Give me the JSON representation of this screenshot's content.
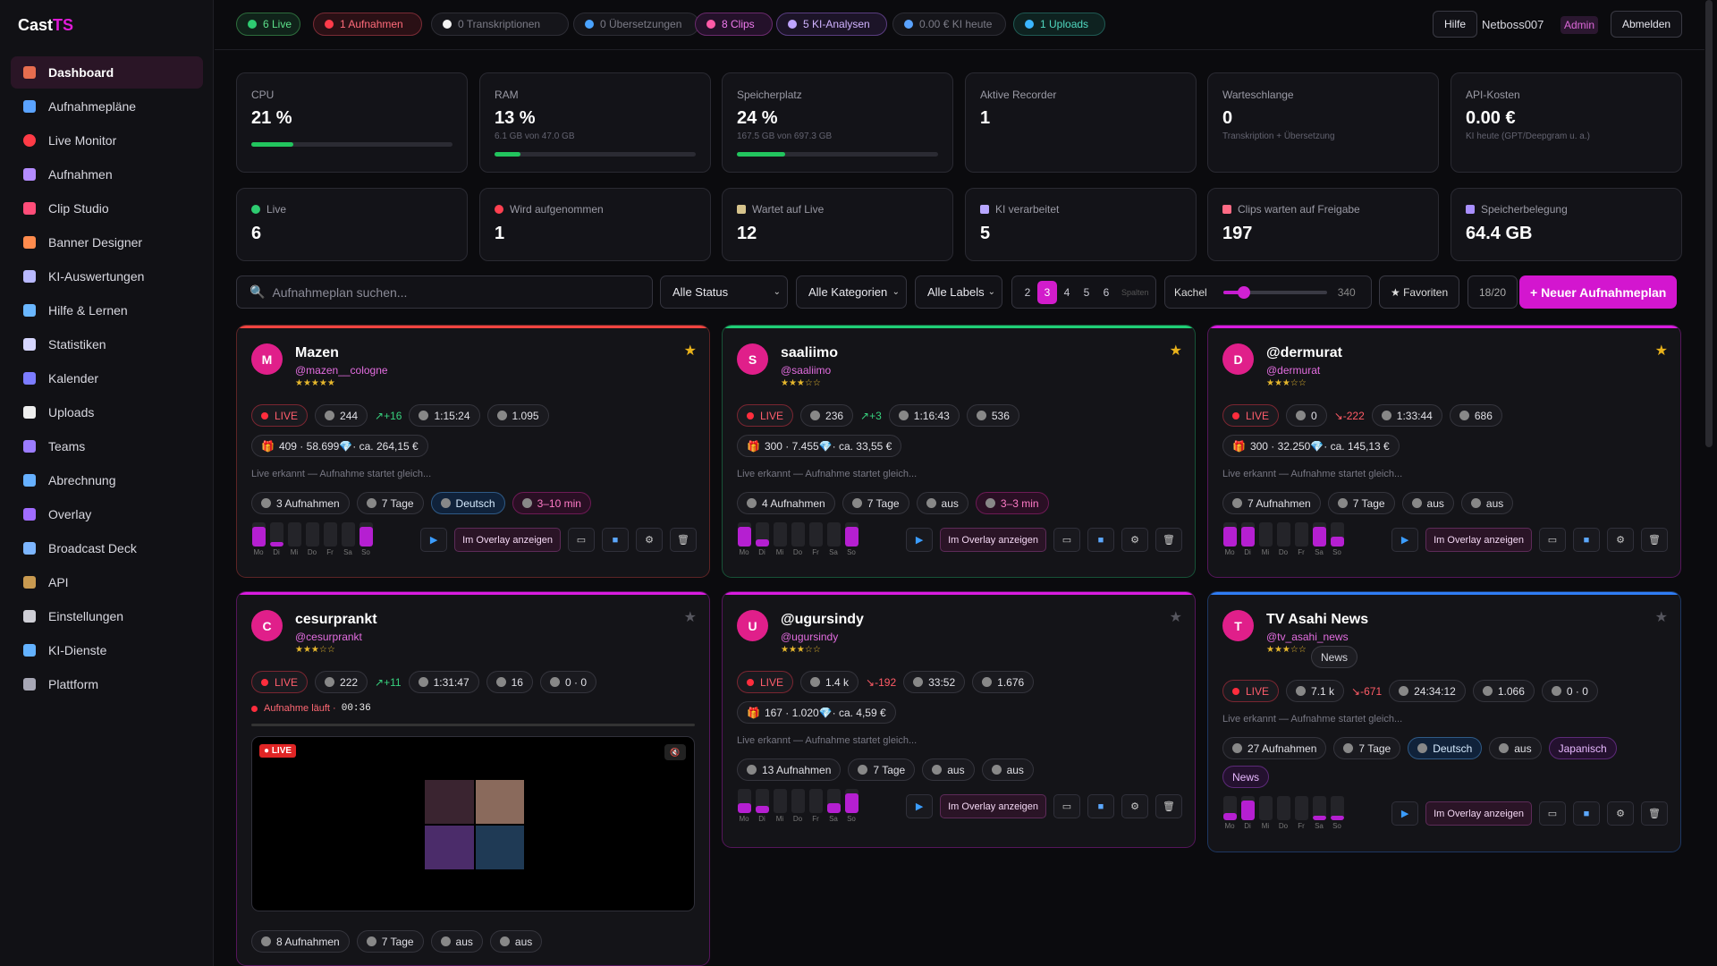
{
  "app": {
    "logo_main": "Cast",
    "logo_accent": "TS"
  },
  "sidebar": {
    "items": [
      {
        "label": "Dashboard",
        "icon": "home-icon",
        "color": "#e66d4f"
      },
      {
        "label": "Aufnahmepläne",
        "icon": "calendar-icon",
        "color": "#5aa3ff"
      },
      {
        "label": "Live Monitor",
        "icon": "record-icon",
        "color": "#ff3b46"
      },
      {
        "label": "Aufnahmen",
        "icon": "users-icon",
        "color": "#b48cff"
      },
      {
        "label": "Clip Studio",
        "icon": "scissors-icon",
        "color": "#ff4d79"
      },
      {
        "label": "Banner Designer",
        "icon": "palette-icon",
        "color": "#ff8b4d"
      },
      {
        "label": "KI-Auswertungen",
        "icon": "robot-icon",
        "color": "#b9b9ff"
      },
      {
        "label": "Hilfe & Lernen",
        "icon": "book-icon",
        "color": "#6ab7ff"
      },
      {
        "label": "Statistiken",
        "icon": "chart-icon",
        "color": "#d6d6ff"
      },
      {
        "label": "Kalender",
        "icon": "calendar-icon",
        "color": "#7c7cff"
      },
      {
        "label": "Uploads",
        "icon": "cloud-icon",
        "color": "#eeeeee"
      },
      {
        "label": "Teams",
        "icon": "team-icon",
        "color": "#9c7cff"
      },
      {
        "label": "Abrechnung",
        "icon": "billing-icon",
        "color": "#66b0ff"
      },
      {
        "label": "Overlay",
        "icon": "overlay-icon",
        "color": "#a06cff"
      },
      {
        "label": "Broadcast Deck",
        "icon": "grid-icon",
        "color": "#7db6ff"
      },
      {
        "label": "API",
        "icon": "plug-icon",
        "color": "#c99a50"
      },
      {
        "label": "Einstellungen",
        "icon": "gear-icon",
        "color": "#cfcfd6"
      },
      {
        "label": "KI-Dienste",
        "icon": "shield-icon",
        "color": "#63b2ff"
      },
      {
        "label": "Plattform",
        "icon": "bank-icon",
        "color": "#a7a7b5"
      }
    ]
  },
  "topbar": {
    "pills": [
      {
        "label": "6 Live",
        "style": "green",
        "dot": "#2ecc71"
      },
      {
        "label": "1 Aufnahmen",
        "style": "red",
        "dot": "#ff3b4a"
      },
      {
        "label": "0 Transkriptionen",
        "style": "gray",
        "dot": "#f3f3f3"
      },
      {
        "label": "0 Übersetzungen",
        "style": "gray",
        "dot": "#4aa3ff"
      },
      {
        "label": "8 Clips",
        "style": "pink",
        "dot": "#ff5aa8"
      },
      {
        "label": "5 KI-Analysen",
        "style": "purple",
        "dot": "#bfa4ff"
      },
      {
        "label": "0.00 € KI heute",
        "style": "gray",
        "dot": "#5aa3ff"
      },
      {
        "label": "1 Uploads",
        "style": "teal",
        "dot": "#3bb6ff"
      }
    ],
    "help": "Hilfe",
    "user": "Netboss007",
    "role": "Admin",
    "logout": "Abmelden"
  },
  "stats": [
    {
      "label": "CPU",
      "value": "21 %",
      "sub": "",
      "bar_percent": 21
    },
    {
      "label": "RAM",
      "value": "13 %",
      "sub": "6.1 GB von 47.0 GB",
      "bar_percent": 13
    },
    {
      "label": "Speicherplatz",
      "value": "24 %",
      "sub": "167.5 GB von 697.3 GB",
      "bar_percent": 24
    },
    {
      "label": "Aktive Recorder",
      "value": "1",
      "sub": ""
    },
    {
      "label": "Warteschlange",
      "value": "0",
      "sub": "Transkription + Übersetzung"
    },
    {
      "label": "API-Kosten",
      "value": "0.00 €",
      "sub": "KI heute (GPT/Deepgram u. a.)"
    }
  ],
  "stats2": [
    {
      "label": "Live",
      "value": "6",
      "icon": "green-dot-icon",
      "color": "#2ecc71"
    },
    {
      "label": "Wird aufgenommen",
      "value": "1",
      "icon": "red-dot-icon",
      "color": "#ff4050"
    },
    {
      "label": "Wartet auf Live",
      "value": "12",
      "icon": "hourglass-icon",
      "color": "#d6c38c"
    },
    {
      "label": "KI verarbeitet",
      "value": "5",
      "icon": "robot-icon",
      "color": "#b7a6ff"
    },
    {
      "label": "Clips warten auf Freigabe",
      "value": "197",
      "icon": "scissors-icon",
      "color": "#ff6b85"
    },
    {
      "label": "Speicherbelegung",
      "value": "64.4 GB",
      "icon": "disk-icon",
      "color": "#a98fff"
    }
  ],
  "filters": {
    "search_placeholder": "Aufnahmeplan suchen...",
    "status": "Alle Status",
    "categories": "Alle Kategorien",
    "labels": "Alle Labels",
    "columns": [
      "2",
      "3",
      "4",
      "5",
      "6"
    ],
    "columns_selected": "3",
    "columns_label": "Spalten",
    "tile_label": "Kachel",
    "tile_value": "340",
    "tile_fraction": 0.2,
    "favorites": "★ Favoriten",
    "count": "18/20",
    "new_plan": "+ Neuer Aufnahmeplan"
  },
  "weekdays": [
    "Mo",
    "Di",
    "Mi",
    "Do",
    "Fr",
    "Sa",
    "So"
  ],
  "cards": [
    {
      "initial": "M",
      "name": "Mazen",
      "handle": "@mazen__cologne",
      "stars": "★★★★★",
      "favorite": true,
      "accent": "#f04440",
      "live": "LIVE",
      "viewers": "244",
      "trend": "+16",
      "trend_dir": "up",
      "time": "1:15:24",
      "comments": "1.095",
      "gifts": "409 · 58.699",
      "money": "· ca. 264,15 €",
      "status": "Live erkannt — Aufnahme startet gleich...",
      "recordings": "3 Aufnahmen",
      "days": "7 Tage",
      "lang": "Deutsch",
      "clip": "3–10 min",
      "week": [
        0.8,
        0.2,
        0,
        0,
        0,
        0,
        0.8
      ]
    },
    {
      "initial": "S",
      "name": "saaliimo",
      "handle": "@saaliimo",
      "stars": "★★★☆☆",
      "favorite": true,
      "accent": "#1fcf76",
      "live": "LIVE",
      "viewers": "236",
      "trend": "+3",
      "trend_dir": "up",
      "time": "1:16:43",
      "comments": "536",
      "gifts": "300 · 7.455",
      "money": "· ca. 33,55 €",
      "status": "Live erkannt — Aufnahme startet gleich...",
      "recordings": "4 Aufnahmen",
      "days": "7 Tage",
      "lang": "aus",
      "clip": "3–3 min",
      "week": [
        0.8,
        0.3,
        0,
        0,
        0,
        0,
        0.8
      ]
    },
    {
      "initial": "D",
      "name": "@dermurat",
      "handle": "@dermurat",
      "stars": "★★★☆☆",
      "favorite": true,
      "accent": "#d91ce0",
      "live": "LIVE",
      "viewers": "0",
      "trend": "-222",
      "trend_dir": "down",
      "time": "1:33:44",
      "comments": "686",
      "gifts": "300 · 32.250",
      "money": "· ca. 145,13 €",
      "status": "Live erkannt — Aufnahme startet gleich...",
      "recordings": "7 Aufnahmen",
      "days": "7 Tage",
      "lang": "aus",
      "clip": "aus",
      "week": [
        0.8,
        0.8,
        0,
        0,
        0,
        0.8,
        0.4
      ]
    },
    {
      "initial": "C",
      "name": "cesurprankt",
      "handle": "@cesurprankt",
      "stars": "★★★☆☆",
      "favorite": false,
      "accent": "#d91ce0",
      "live": "LIVE",
      "viewers": "222",
      "trend": "+11",
      "trend_dir": "up",
      "time": "1:31:47",
      "comments": "16",
      "gifts": "0 · 0",
      "recording": "Aufnahme läuft ·",
      "rec_time": "00:36",
      "live_badge": "● LIVE",
      "recordings": "8 Aufnahmen",
      "days": "7 Tage",
      "lang": "aus",
      "clip": "aus"
    },
    {
      "initial": "U",
      "name": "@ugursindy",
      "handle": "@ugursindy",
      "stars": "★★★☆☆",
      "favorite": false,
      "accent": "#d91ce0",
      "live": "LIVE",
      "viewers": "1.4 k",
      "trend": "-192",
      "trend_dir": "down",
      "time": "33:52",
      "comments": "1.676",
      "gifts": "167 · 1.020",
      "money": "· ca. 4,59 €",
      "status": "Live erkannt — Aufnahme startet gleich...",
      "recordings": "13 Aufnahmen",
      "days": "7 Tage",
      "lang": "aus",
      "clip": "aus",
      "week": [
        0.4,
        0.3,
        0,
        0,
        0,
        0.4,
        0.8
      ]
    },
    {
      "initial": "T",
      "name": "TV Asahi News",
      "handle": "@tv_asahi_news",
      "stars": "★★★☆☆",
      "favorite": false,
      "accent": "#2f7df5",
      "category": "News",
      "live": "LIVE",
      "viewers": "7.1 k",
      "trend": "-671",
      "trend_dir": "down",
      "time": "24:34:12",
      "comments": "1.066",
      "gifts": "0 · 0",
      "status": "Live erkannt — Aufnahme startet gleich...",
      "recordings": "27 Aufnahmen",
      "days": "7 Tage",
      "lang": "Deutsch",
      "clip": "aus",
      "extra_lang": "Japanisch",
      "extra_tag": "News",
      "week": [
        0.3,
        0.8,
        0,
        0,
        0,
        0.2,
        0.2
      ]
    }
  ],
  "actions": {
    "overlay": "Im Overlay anzeigen"
  }
}
